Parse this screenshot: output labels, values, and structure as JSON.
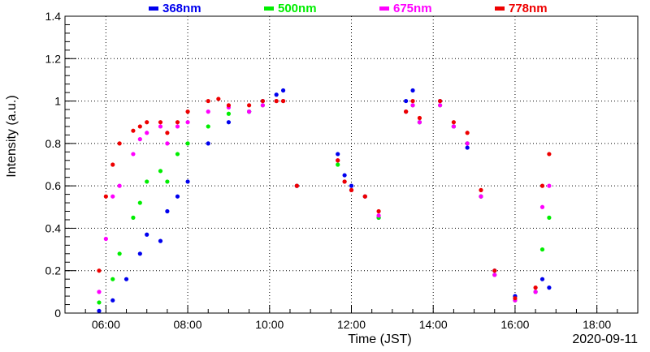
{
  "chart_data": {
    "type": "scatter",
    "title": "",
    "xlabel": "Time (JST)",
    "ylabel": "Intensity (a.u.)",
    "date_label": "2020-09-11",
    "xlim": [
      "05:00",
      "19:00"
    ],
    "ylim": [
      0,
      1.4
    ],
    "x_ticks": [
      "06:00",
      "08:00",
      "10:00",
      "12:00",
      "14:00",
      "16:00",
      "18:00"
    ],
    "y_ticks": [
      "0",
      "0.2",
      "0.4",
      "0.6",
      "0.8",
      "1",
      "1.2",
      "1.4"
    ],
    "grid": true,
    "legend_position": "top",
    "series": [
      {
        "name": "368nm",
        "color": "#0000ee",
        "x": [
          "05:50",
          "06:10",
          "06:30",
          "06:50",
          "07:00",
          "07:20",
          "07:30",
          "07:45",
          "08:00",
          "08:30",
          "09:00",
          "09:30",
          "09:50",
          "10:10",
          "10:20",
          "10:40",
          "11:40",
          "11:50",
          "12:00",
          "12:20",
          "12:40",
          "13:20",
          "13:30",
          "13:40",
          "14:10",
          "14:30",
          "14:50",
          "15:10",
          "15:30",
          "16:00",
          "16:30",
          "16:40",
          "16:50"
        ],
        "y": [
          0.01,
          0.06,
          0.16,
          0.28,
          0.37,
          0.34,
          0.48,
          0.55,
          0.62,
          0.8,
          0.9,
          0.95,
          1.0,
          1.03,
          1.05,
          0.6,
          0.75,
          0.65,
          0.6,
          0.55,
          0.45,
          1.0,
          1.05,
          0.9,
          1.0,
          0.88,
          0.78,
          0.55,
          0.2,
          0.08,
          0.1,
          0.16,
          0.12
        ]
      },
      {
        "name": "500nm",
        "color": "#00ee00",
        "x": [
          "05:50",
          "06:10",
          "06:20",
          "06:40",
          "06:50",
          "07:00",
          "07:20",
          "07:30",
          "07:45",
          "08:00",
          "08:30",
          "09:00",
          "09:30",
          "09:50",
          "10:10",
          "10:20",
          "10:40",
          "11:40",
          "11:50",
          "12:00",
          "12:20",
          "12:40",
          "13:20",
          "13:30",
          "13:40",
          "14:10",
          "14:30",
          "14:50",
          "15:10",
          "15:30",
          "16:00",
          "16:30",
          "16:40",
          "16:50"
        ],
        "y": [
          0.05,
          0.16,
          0.28,
          0.45,
          0.52,
          0.62,
          0.67,
          0.62,
          0.75,
          0.8,
          0.88,
          0.94,
          0.95,
          0.98,
          1.0,
          1.0,
          0.6,
          0.7,
          0.62,
          0.58,
          0.55,
          0.45,
          0.95,
          0.98,
          0.9,
          0.98,
          0.88,
          0.8,
          0.55,
          0.18,
          0.06,
          0.1,
          0.3,
          0.45
        ]
      },
      {
        "name": "675nm",
        "color": "#ff00ff",
        "x": [
          "05:50",
          "06:00",
          "06:10",
          "06:20",
          "06:40",
          "06:50",
          "07:00",
          "07:20",
          "07:30",
          "07:45",
          "08:00",
          "08:30",
          "09:00",
          "09:30",
          "09:50",
          "10:10",
          "10:20",
          "10:40",
          "11:40",
          "11:50",
          "12:00",
          "12:20",
          "12:40",
          "13:20",
          "13:30",
          "13:40",
          "14:10",
          "14:30",
          "14:50",
          "15:10",
          "15:30",
          "16:00",
          "16:30",
          "16:40",
          "16:50"
        ],
        "y": [
          0.1,
          0.35,
          0.55,
          0.6,
          0.75,
          0.82,
          0.85,
          0.88,
          0.8,
          0.88,
          0.9,
          0.95,
          0.97,
          0.95,
          0.98,
          1.0,
          1.0,
          0.6,
          0.72,
          0.62,
          0.58,
          0.55,
          0.46,
          0.95,
          0.98,
          0.9,
          0.98,
          0.88,
          0.8,
          0.55,
          0.18,
          0.06,
          0.1,
          0.5,
          0.6
        ]
      },
      {
        "name": "778nm",
        "color": "#ee0000",
        "x": [
          "05:50",
          "06:00",
          "06:10",
          "06:20",
          "06:40",
          "06:50",
          "07:00",
          "07:20",
          "07:30",
          "07:45",
          "08:00",
          "08:30",
          "08:45",
          "09:00",
          "09:30",
          "09:50",
          "10:10",
          "10:20",
          "10:40",
          "11:40",
          "11:50",
          "12:00",
          "12:20",
          "12:40",
          "13:20",
          "13:30",
          "13:40",
          "14:10",
          "14:30",
          "14:50",
          "15:10",
          "15:30",
          "16:00",
          "16:30",
          "16:40",
          "16:50"
        ],
        "y": [
          0.2,
          0.55,
          0.7,
          0.8,
          0.86,
          0.88,
          0.9,
          0.9,
          0.85,
          0.9,
          0.95,
          1.0,
          1.01,
          0.98,
          0.98,
          1.0,
          1.0,
          1.0,
          0.6,
          0.72,
          0.62,
          0.58,
          0.55,
          0.48,
          0.95,
          1.0,
          0.92,
          1.0,
          0.9,
          0.85,
          0.58,
          0.2,
          0.07,
          0.12,
          0.6,
          0.75
        ]
      }
    ]
  }
}
